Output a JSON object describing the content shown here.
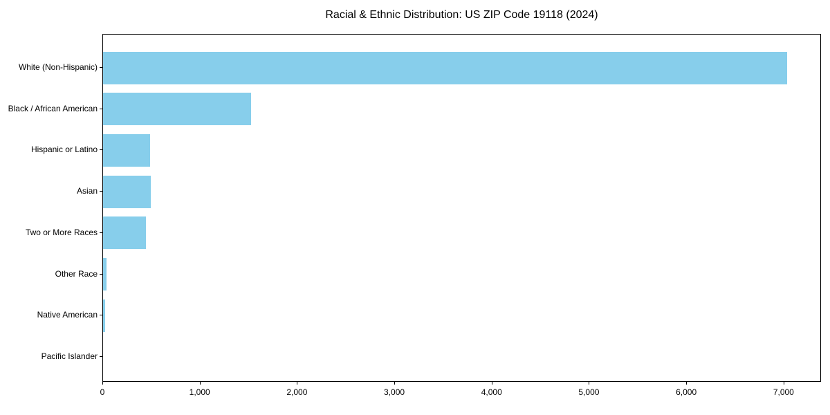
{
  "chart_data": {
    "type": "bar",
    "orientation": "horizontal",
    "title": "Racial & Ethnic Distribution: US ZIP Code 19118 (2024)",
    "categories": [
      "White (Non-Hispanic)",
      "Black / African American",
      "Hispanic or Latino",
      "Asian",
      "Two or More Races",
      "Other Race",
      "Native American",
      "Pacific Islander"
    ],
    "values": [
      7030,
      1520,
      482,
      489,
      441,
      35,
      21,
      0
    ],
    "xlabel": "",
    "ylabel": "",
    "xlim": [
      0,
      7385
    ],
    "x_ticks": [
      0,
      1000,
      2000,
      3000,
      4000,
      5000,
      6000,
      7000
    ],
    "x_tick_labels": [
      "0",
      "1,000",
      "2,000",
      "3,000",
      "4,000",
      "5,000",
      "6,000",
      "7,000"
    ],
    "bar_color": "#87CEEB",
    "background_color": "#ffffff",
    "spine_color": "#000000",
    "text_color": "#000000",
    "grid": false,
    "legend": null,
    "value_labels_shown": false
  }
}
